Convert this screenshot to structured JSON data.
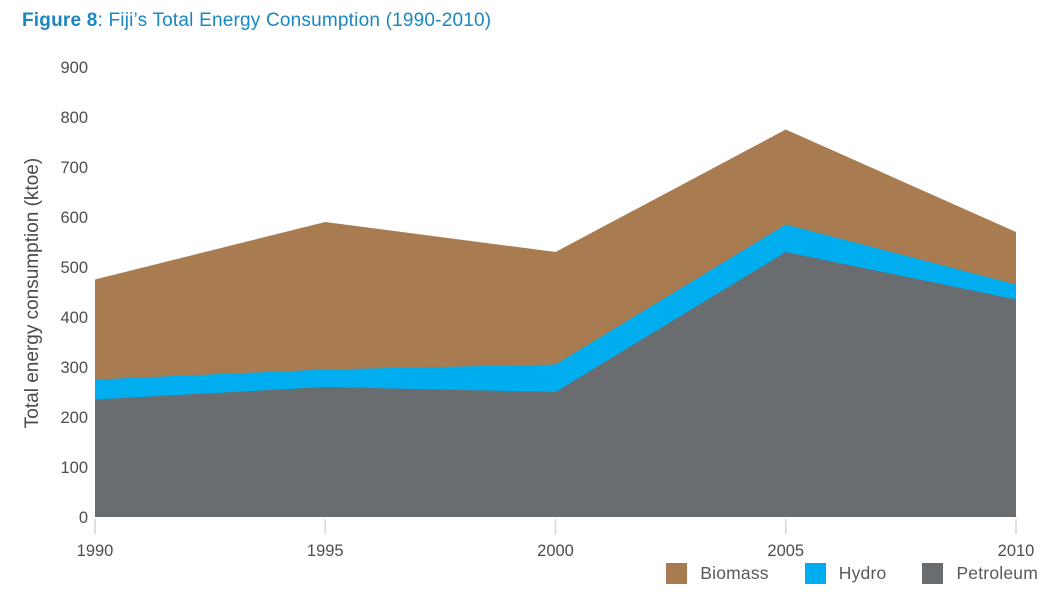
{
  "title": {
    "prefix": "Figure 8",
    "rest": ": Fiji’s Total Energy Consumption (1990-2010)"
  },
  "colors": {
    "title_blue": "#1a87c4",
    "axis_text": "#4d4d4f",
    "tick_line": "#d6d6d6",
    "legend_text": "#58595b"
  },
  "chart_data": {
    "type": "area",
    "stacked": true,
    "title": "Figure 8: Fiji’s Total Energy Consumption (1990-2010)",
    "x": [
      1990,
      1995,
      2000,
      2005,
      2010
    ],
    "series": [
      {
        "name": "Petroleum",
        "color": "#6A6D70",
        "values": [
          235,
          260,
          250,
          530,
          435
        ]
      },
      {
        "name": "Hydro",
        "color": "#00AEEF",
        "values": [
          40,
          35,
          55,
          55,
          30
        ]
      },
      {
        "name": "Biomass",
        "color": "#A87C50",
        "values": [
          200,
          295,
          225,
          190,
          105
        ]
      }
    ],
    "stacked_totals": [
      475,
      590,
      530,
      775,
      570
    ],
    "xlabel": "",
    "ylabel": "Total energy consumption (ktoe)",
    "ylim": [
      0,
      900
    ],
    "y_ticks": [
      0,
      100,
      200,
      300,
      400,
      500,
      600,
      700,
      800,
      900
    ],
    "x_ticks": [
      1990,
      1995,
      2000,
      2005,
      2010
    ],
    "grid": false,
    "legend_position": "bottom-right",
    "legend": [
      {
        "label": "Biomass",
        "color": "#A87C50"
      },
      {
        "label": "Hydro",
        "color": "#00AEEF"
      },
      {
        "label": "Petroleum",
        "color": "#6A6D70"
      }
    ]
  }
}
